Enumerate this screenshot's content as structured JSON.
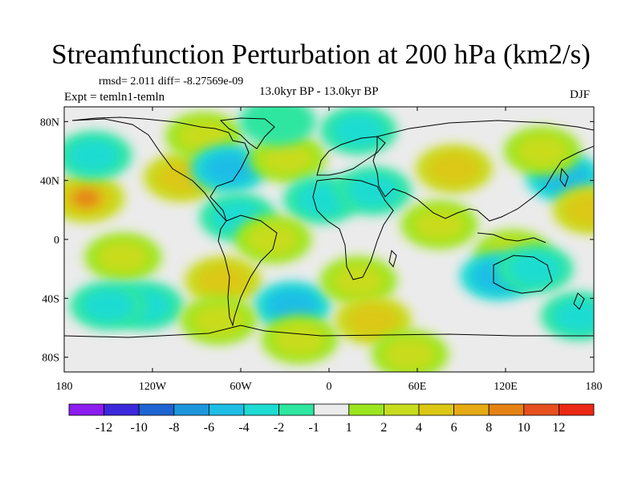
{
  "header": {
    "title": "Streamfunction Perturbation at 200 hPa (km2/s)",
    "stats": "rmsd= 2.011 diff= -8.27569e-09",
    "expt": "Expt = temln1-temln",
    "period": "13.0kyr BP - 13.0kyr BP",
    "season": "DJF"
  },
  "axes": {
    "lat_labels": [
      "80N",
      "40N",
      "0",
      "40S",
      "80S"
    ],
    "lat_values": [
      80,
      40,
      0,
      -40,
      -80
    ],
    "lon_labels": [
      "180",
      "120W",
      "60W",
      "0",
      "60E",
      "120E",
      "180"
    ],
    "lon_values": [
      -180,
      -120,
      -60,
      0,
      60,
      120,
      180
    ],
    "lat_range": [
      -90,
      90
    ],
    "lon_range": [
      -180,
      180
    ]
  },
  "colorbar": {
    "colors": [
      "#8c1cf0",
      "#3c28dc",
      "#1e64d2",
      "#1e96dc",
      "#1ebee6",
      "#1edcd2",
      "#2de6a0",
      "#ebebeb",
      "#9be61e",
      "#c8dc1e",
      "#dcc814",
      "#e6aa14",
      "#e68214",
      "#e6501e",
      "#eb2814"
    ],
    "labels": [
      "-12",
      "-10",
      "-8",
      "-6",
      "-4",
      "-2",
      "-1",
      "1",
      "2",
      "4",
      "6",
      "8",
      "10",
      "12"
    ]
  },
  "field": {
    "background": "#ebebeb",
    "centers": [
      {
        "lon": -165,
        "lat": 28,
        "v": 8
      },
      {
        "lon": -140,
        "lat": -12,
        "v": 2
      },
      {
        "lon": -100,
        "lat": 42,
        "v": 4
      },
      {
        "lon": -85,
        "lat": 70,
        "v": 2
      },
      {
        "lon": -160,
        "lat": 57,
        "v": -2
      },
      {
        "lon": -68,
        "lat": 48,
        "v": -4
      },
      {
        "lon": -62,
        "lat": 15,
        "v": -2
      },
      {
        "lon": -28,
        "lat": 55,
        "v": 2
      },
      {
        "lon": -5,
        "lat": 27,
        "v": -2
      },
      {
        "lon": -38,
        "lat": 0,
        "v": 2
      },
      {
        "lon": -125,
        "lat": -45,
        "v": -2
      },
      {
        "lon": -150,
        "lat": -45,
        "v": -2
      },
      {
        "lon": -72,
        "lat": -28,
        "v": 4
      },
      {
        "lon": -25,
        "lat": -45,
        "v": -4
      },
      {
        "lon": 20,
        "lat": -28,
        "v": 2
      },
      {
        "lon": 30,
        "lat": -55,
        "v": 4
      },
      {
        "lon": -20,
        "lat": -68,
        "v": 2
      },
      {
        "lon": 20,
        "lat": 74,
        "v": -2
      },
      {
        "lon": 30,
        "lat": 33,
        "v": -2
      },
      {
        "lon": 85,
        "lat": 48,
        "v": 4
      },
      {
        "lon": 75,
        "lat": 10,
        "v": 2
      },
      {
        "lon": 125,
        "lat": -10,
        "v": 2
      },
      {
        "lon": 115,
        "lat": -25,
        "v": -4
      },
      {
        "lon": 140,
        "lat": -20,
        "v": -2
      },
      {
        "lon": 160,
        "lat": 42,
        "v": -4
      },
      {
        "lon": 178,
        "lat": 20,
        "v": 4
      },
      {
        "lon": 145,
        "lat": 60,
        "v": 2
      },
      {
        "lon": 170,
        "lat": -52,
        "v": -2
      },
      {
        "lon": 55,
        "lat": -78,
        "v": 2
      },
      {
        "lon": -35,
        "lat": 80,
        "v": -1
      },
      {
        "lon": -75,
        "lat": -55,
        "v": 2
      }
    ]
  }
}
